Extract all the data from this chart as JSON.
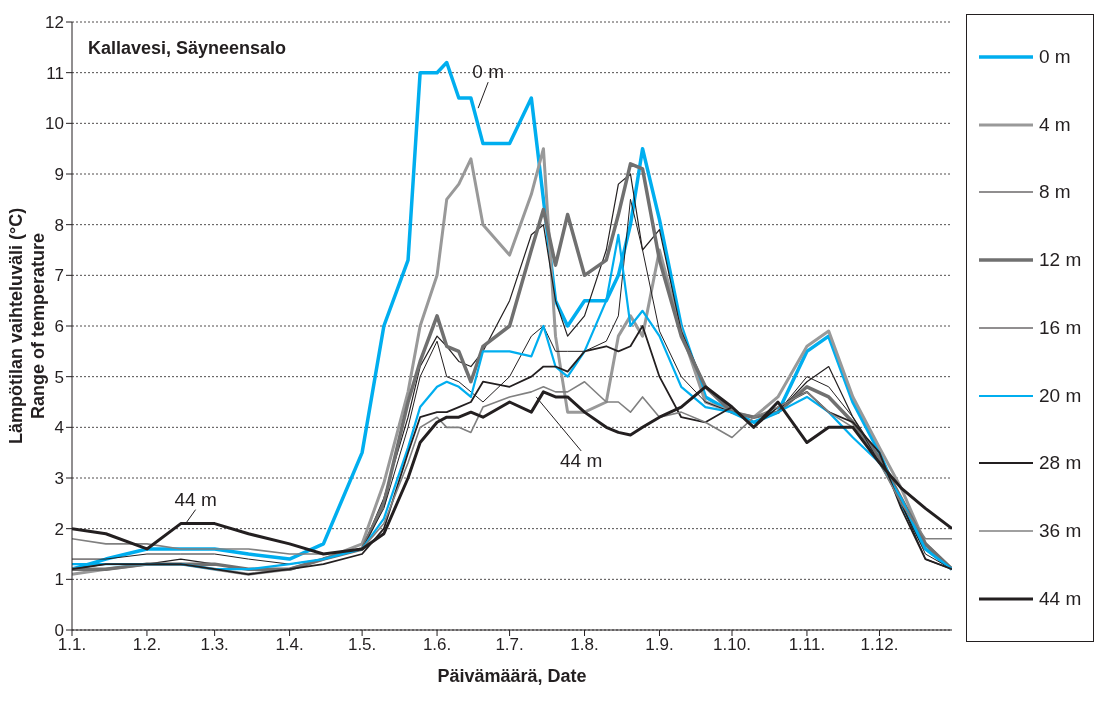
{
  "chart_data": {
    "type": "line",
    "title": "Kallavesi, Säyneensalo",
    "xlabel": "Päivämäärä, Date",
    "ylabel": "Lämpötilan vaihteluväli (°C)\nRange of temperature",
    "x": [
      "--01-01",
      "--01-15",
      "--02-01",
      "--02-15",
      "--03-01",
      "--03-15",
      "--04-01",
      "--04-15",
      "--05-01",
      "--05-10",
      "--05-20",
      "--05-25",
      "--06-01",
      "--06-05",
      "--06-10",
      "--06-15",
      "--06-20",
      "--07-01",
      "--07-10",
      "--07-15",
      "--07-20",
      "--07-25",
      "--08-01",
      "--08-10",
      "--08-15",
      "--08-20",
      "--08-25",
      "--09-01",
      "--09-10",
      "--09-20",
      "--10-01",
      "--10-10",
      "--10-20",
      "--11-01",
      "--11-10",
      "--11-20",
      "--12-01",
      "--12-10",
      "--12-20",
      "--12-31"
    ],
    "series": [
      {
        "name": "0 m",
        "color": "#00aeef",
        "values": [
          1.2,
          1.4,
          1.6,
          1.6,
          1.6,
          1.5,
          1.4,
          1.7,
          3.5,
          6.0,
          7.3,
          11.0,
          11.0,
          11.2,
          10.5,
          10.5,
          9.6,
          9.6,
          10.5,
          8.5,
          6.5,
          6.0,
          6.5,
          6.5,
          7.0,
          8.0,
          9.5,
          8.1,
          6.0,
          4.6,
          4.3,
          4.1,
          4.3,
          5.5,
          5.8,
          4.5,
          3.5,
          2.5,
          1.6,
          1.2
        ]
      },
      {
        "name": "4 m",
        "color": "#999999",
        "values": [
          1.1,
          1.2,
          1.3,
          1.3,
          1.2,
          1.1,
          1.2,
          1.4,
          1.7,
          2.9,
          4.7,
          6.0,
          7.0,
          8.5,
          8.8,
          9.3,
          8.0,
          7.4,
          8.6,
          9.5,
          5.8,
          4.3,
          4.3,
          4.5,
          5.8,
          6.2,
          5.8,
          7.5,
          5.9,
          4.5,
          4.3,
          4.2,
          4.6,
          5.6,
          5.9,
          4.6,
          3.6,
          2.8,
          1.7,
          1.2
        ]
      },
      {
        "name": "8 m",
        "color": "#231f20",
        "values": [
          1.2,
          1.3,
          1.3,
          1.4,
          1.3,
          1.2,
          1.2,
          1.4,
          1.6,
          2.6,
          4.2,
          5.2,
          5.8,
          5.6,
          5.3,
          5.2,
          5.5,
          6.5,
          7.8,
          8.0,
          6.5,
          5.8,
          6.2,
          7.5,
          8.8,
          9.0,
          7.5,
          7.9,
          5.9,
          4.8,
          4.3,
          4.1,
          4.3,
          4.9,
          5.2,
          4.2,
          3.4,
          2.5,
          1.4,
          1.2
        ]
      },
      {
        "name": "12 m",
        "color": "#707070",
        "values": [
          1.2,
          1.2,
          1.3,
          1.3,
          1.3,
          1.2,
          1.2,
          1.4,
          1.6,
          2.5,
          4.5,
          5.3,
          6.2,
          5.6,
          5.5,
          4.9,
          5.6,
          6.0,
          7.5,
          8.3,
          7.2,
          8.2,
          7.0,
          7.3,
          8.2,
          9.2,
          9.1,
          7.3,
          5.8,
          4.8,
          4.3,
          4.2,
          4.3,
          4.8,
          4.6,
          4.1,
          3.4,
          2.6,
          1.7,
          1.2
        ]
      },
      {
        "name": "16 m",
        "color": "#231f20",
        "values": [
          1.4,
          1.4,
          1.5,
          1.5,
          1.5,
          1.4,
          1.3,
          1.4,
          1.6,
          2.4,
          4.0,
          5.0,
          5.7,
          5.0,
          4.9,
          4.7,
          4.5,
          5.0,
          5.8,
          6.0,
          5.5,
          5.5,
          5.5,
          5.7,
          6.2,
          8.5,
          7.5,
          5.9,
          5.0,
          4.5,
          4.3,
          4.1,
          4.3,
          5.0,
          4.8,
          4.2,
          3.3,
          2.5,
          1.5,
          1.2
        ]
      },
      {
        "name": "20 m",
        "color": "#00aeef",
        "values": [
          1.3,
          1.3,
          1.3,
          1.3,
          1.2,
          1.2,
          1.3,
          1.4,
          1.6,
          2.2,
          3.6,
          4.4,
          4.8,
          4.9,
          4.8,
          4.6,
          5.5,
          5.5,
          5.4,
          6.0,
          5.2,
          5.0,
          5.5,
          6.5,
          7.8,
          6.0,
          6.3,
          5.8,
          4.8,
          4.4,
          4.3,
          4.1,
          4.3,
          4.6,
          4.3,
          3.8,
          3.3,
          2.6,
          1.6,
          1.2
        ]
      },
      {
        "name": "28 m",
        "color": "#231f20",
        "values": [
          1.2,
          1.3,
          1.3,
          1.3,
          1.2,
          1.1,
          1.2,
          1.3,
          1.5,
          2.0,
          3.5,
          4.2,
          4.3,
          4.3,
          4.4,
          4.5,
          4.9,
          4.8,
          5.0,
          5.2,
          5.2,
          5.1,
          5.5,
          5.6,
          5.5,
          5.6,
          6.0,
          5.0,
          4.2,
          4.1,
          4.4,
          4.0,
          4.4,
          4.7,
          4.3,
          4.1,
          3.5,
          2.4,
          1.4,
          1.2
        ]
      },
      {
        "name": "36 m",
        "color": "#808080",
        "values": [
          1.8,
          1.7,
          1.7,
          1.6,
          1.6,
          1.6,
          1.5,
          1.5,
          1.6,
          2.1,
          3.3,
          4.0,
          4.2,
          4.0,
          4.0,
          3.9,
          4.4,
          4.6,
          4.7,
          4.8,
          4.7,
          4.7,
          4.9,
          4.5,
          4.5,
          4.3,
          4.6,
          4.2,
          4.3,
          4.1,
          3.8,
          4.2,
          4.4,
          4.7,
          4.3,
          4.0,
          3.3,
          2.5,
          1.8,
          1.8
        ]
      },
      {
        "name": "44 m",
        "color": "#231f20",
        "values": [
          2.0,
          1.9,
          1.6,
          2.1,
          2.1,
          1.9,
          1.7,
          1.5,
          1.6,
          1.9,
          3.0,
          3.7,
          4.1,
          4.2,
          4.2,
          4.3,
          4.2,
          4.5,
          4.3,
          4.7,
          4.6,
          4.6,
          4.3,
          4.0,
          3.9,
          3.85,
          4.0,
          4.2,
          4.4,
          4.8,
          4.4,
          4.0,
          4.5,
          3.7,
          4.0,
          4.0,
          3.3,
          2.8,
          2.4,
          2.0
        ]
      }
    ],
    "xlim": [
      "--01-01",
      "--12-31"
    ],
    "xticks": [
      {
        "value": "--01-01",
        "label": "1.1."
      },
      {
        "value": "--02-01",
        "label": "1.2."
      },
      {
        "value": "--03-01",
        "label": "1.3."
      },
      {
        "value": "--04-01",
        "label": "1.4."
      },
      {
        "value": "--05-01",
        "label": "1.5."
      },
      {
        "value": "--06-01",
        "label": "1.6."
      },
      {
        "value": "--07-01",
        "label": "1.7."
      },
      {
        "value": "--08-01",
        "label": "1.8."
      },
      {
        "value": "--09-01",
        "label": "1.9."
      },
      {
        "value": "--10-01",
        "label": "1.10."
      },
      {
        "value": "--11-01",
        "label": "1.11."
      },
      {
        "value": "--12-01",
        "label": "1.12."
      }
    ],
    "ylim": [
      0,
      12
    ],
    "yticks": [
      0,
      1,
      2,
      3,
      4,
      5,
      6,
      7,
      8,
      9,
      10,
      11,
      12
    ],
    "grid": "y",
    "legend": "right",
    "marker": "none",
    "line_style": "solid",
    "annotations": [
      {
        "text": "0 m",
        "x": "--06-18",
        "y": 10.3
      },
      {
        "text": "44 m",
        "x": "--02-17",
        "y": 2.1
      },
      {
        "text": "44 m",
        "x": "--07-12",
        "y": 4.6
      }
    ]
  }
}
